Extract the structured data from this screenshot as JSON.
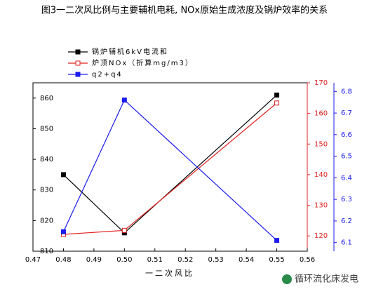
{
  "chart_data": {
    "type": "line",
    "title": "图3一二次风比例与主要辅机电耗, NOx原始生成浓度及锅炉效率的关系",
    "xlabel": "一二次风比",
    "watermark": "循环流化床发电",
    "x": [
      0.48,
      0.5,
      0.55
    ],
    "xlim": [
      0.47,
      0.56
    ],
    "xticks": [
      0.47,
      0.48,
      0.49,
      {
        "value": 0.5,
        "label": "0.50"
      },
      0.51,
      0.52,
      0.53,
      0.54,
      0.55,
      0.56
    ],
    "ylim": [
      810,
      865
    ],
    "yticks": [
      810,
      820,
      830,
      840,
      850,
      860
    ],
    "y2lim": [
      115,
      170
    ],
    "y2ticks": [
      120,
      130,
      140,
      150,
      160,
      170
    ],
    "y3lim": [
      6.06,
      6.84
    ],
    "y3ticks": [
      6.1,
      6.2,
      6.3,
      6.4,
      6.5,
      6.6,
      6.7,
      6.8
    ],
    "legend": "upper left",
    "series": [
      {
        "name": "锅炉辅机6kV电流和",
        "color": "#000000",
        "values": [
          835,
          816,
          861
        ],
        "axis": "y",
        "marker": "filled"
      },
      {
        "name": "炉顶NOx（折算mg/m3）",
        "color": "#e02020",
        "values": [
          120.5,
          121.8,
          163.4
        ],
        "axis": "y2",
        "marker": "hollow"
      },
      {
        "name": "q2+q4",
        "color": "#1a1aee",
        "values": [
          6.15,
          6.76,
          6.11
        ],
        "axis": "y3",
        "marker": "filled"
      }
    ]
  }
}
